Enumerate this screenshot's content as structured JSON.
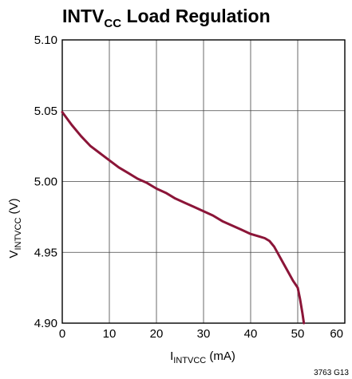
{
  "chart_data": {
    "type": "line",
    "title": {
      "main": "INTV",
      "sub": "CC",
      "rest": " Load Regulation"
    },
    "xlabel": {
      "main": "I",
      "sub": "INTVCC",
      "rest": " (mA)"
    },
    "ylabel": {
      "main": "V",
      "sub": "INTVCC",
      "rest": " (V)"
    },
    "xlim": [
      0,
      60
    ],
    "ylim": [
      4.9,
      5.1
    ],
    "x_ticks": [
      0,
      10,
      20,
      30,
      40,
      50,
      60
    ],
    "x_tick_labels": [
      "0",
      "10",
      "20",
      "30",
      "40",
      "50",
      "60"
    ],
    "y_ticks": [
      4.9,
      4.95,
      5.0,
      5.05,
      5.1
    ],
    "y_tick_labels": [
      "4.90",
      "4.95",
      "5.00",
      "5.05",
      "5.10"
    ],
    "grid": true,
    "series": [
      {
        "color": "#8b1538",
        "x": [
          0,
          2,
          4,
          6,
          8,
          10,
          12,
          14,
          16,
          18,
          20,
          22,
          24,
          26,
          28,
          30,
          32,
          34,
          36,
          38,
          40,
          42,
          43,
          44,
          45,
          46,
          47,
          48,
          49,
          50,
          50.5,
          51,
          51.3
        ],
        "y": [
          5.049,
          5.04,
          5.032,
          5.025,
          5.02,
          5.015,
          5.01,
          5.006,
          5.002,
          4.999,
          4.995,
          4.992,
          4.988,
          4.985,
          4.982,
          4.979,
          4.976,
          4.972,
          4.969,
          4.966,
          4.963,
          4.961,
          4.96,
          4.958,
          4.954,
          4.948,
          4.942,
          4.936,
          4.93,
          4.925,
          4.917,
          4.907,
          4.9
        ]
      }
    ],
    "footnote": "3763 G13"
  }
}
